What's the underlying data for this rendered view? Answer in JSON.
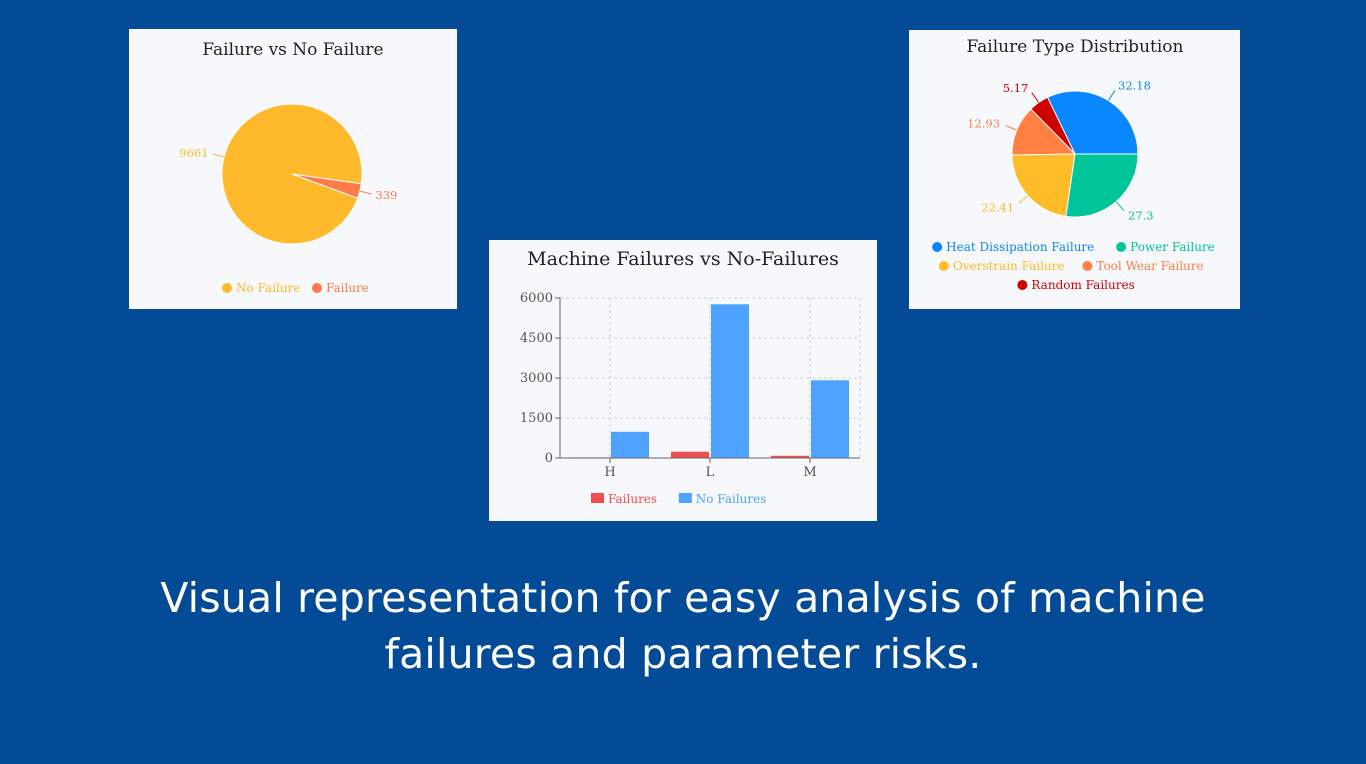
{
  "colors": {
    "background": "#034b96",
    "card": "#f7f8fc",
    "no_failure_pie": "#ffb92a",
    "failure_pie": "#ff7b4a",
    "bar_failures": "#f04e4e",
    "bar_no_failures": "#4da3ff",
    "heat": "#0a87ff",
    "power": "#00c49a",
    "overstrain": "#ffbb28",
    "toolwear": "#ff8042",
    "random": "#cf0000"
  },
  "caption": {
    "line1": "Visual representation for easy analysis of machine",
    "line2": "failures and parameter risks."
  },
  "chart_data": [
    {
      "type": "pie",
      "title": "Failure vs No Failure",
      "slices": [
        {
          "name": "No Failure",
          "value": 9661,
          "label": "9661",
          "color": "#ffb92a"
        },
        {
          "name": "Failure",
          "value": 339,
          "label": "339",
          "color": "#ff7b4a"
        }
      ],
      "legend_position": "bottom"
    },
    {
      "type": "bar",
      "title": "Machine Failures vs No-Failures",
      "categories": [
        "H",
        "L",
        "M"
      ],
      "series": [
        {
          "name": "Failures",
          "values": [
            21,
            235,
            83
          ],
          "color": "#f04e4e"
        },
        {
          "name": "No Failures",
          "values": [
            982,
            5765,
            2914
          ],
          "color": "#4da3ff"
        }
      ],
      "yticks": [
        "0",
        "1500",
        "3000",
        "4500",
        "6000"
      ],
      "ylim": [
        0,
        6000
      ],
      "grid": true,
      "legend_position": "bottom"
    },
    {
      "type": "pie",
      "title": "Failure Type Distribution",
      "slices": [
        {
          "name": "Heat Dissipation Failure",
          "value": 32.18,
          "label": "32.18",
          "color": "#0a87ff"
        },
        {
          "name": "Random Failures",
          "value": 5.17,
          "label": "5.17",
          "color": "#cf0000"
        },
        {
          "name": "Tool Wear Failure",
          "value": 12.93,
          "label": "12.93",
          "color": "#ff8042"
        },
        {
          "name": "Overstrain Failure",
          "value": 22.41,
          "label": "22.41",
          "color": "#ffbb28"
        },
        {
          "name": "Power Failure",
          "value": 27.3,
          "label": "27.3",
          "color": "#00c49a"
        }
      ],
      "legend": [
        [
          "Heat Dissipation Failure",
          "Power Failure"
        ],
        [
          "Overstrain Failure",
          "Tool Wear Failure"
        ],
        [
          "Random Failures"
        ]
      ],
      "legend_position": "bottom"
    }
  ]
}
